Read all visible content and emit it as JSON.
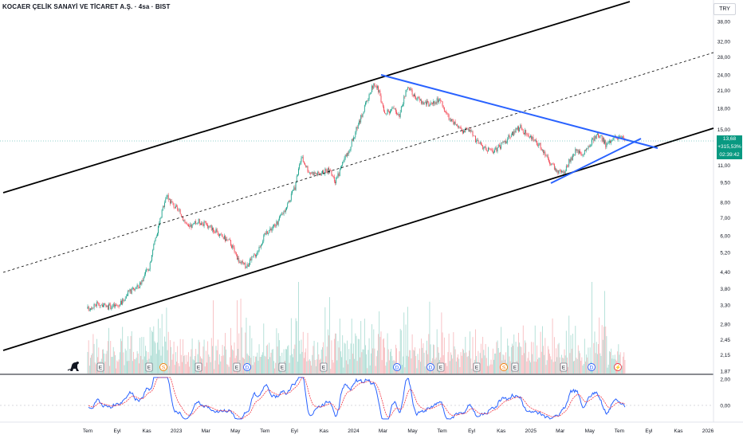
{
  "header": {
    "title": "KOCAER ÇELİK SANAYİ VE TİCARET A.Ş. · 4sa · BIST",
    "currency": "TRY"
  },
  "price_label": {
    "price": "13,68",
    "change": "+315,53%",
    "countdown": "02:39:42"
  },
  "colors": {
    "up": "#089981",
    "down": "#f23645",
    "trend_blue": "#2962ff",
    "channel": "#000000",
    "price_line": "#26a69a"
  },
  "chart_data": {
    "type": "candlestick",
    "title": "",
    "y_scale": "log",
    "y_ticks": [
      "38,00",
      "32,00",
      "28,00",
      "24,00",
      "21,00",
      "18,00",
      "15,00",
      "11,00",
      "9,50",
      "8,00",
      "7,00",
      "6,00",
      "5,20",
      "4,40",
      "3,80",
      "3,30",
      "2,80",
      "2,45",
      "2,15",
      "1,87"
    ],
    "x_ticks": [
      "Tem",
      "Eyl",
      "Kas",
      "2023",
      "Mar",
      "May",
      "Tem",
      "Eyl",
      "Kas",
      "2024",
      "Mar",
      "May",
      "Tem",
      "Eyl",
      "Kas",
      "2025",
      "Mar",
      "May",
      "Tem",
      "Eyl",
      "Kas",
      "2026"
    ],
    "price_path": [
      [
        "2022-07-01",
        3.2
      ],
      [
        "2022-07-20",
        3.35
      ],
      [
        "2022-08-10",
        3.25
      ],
      [
        "2022-09-05",
        3.3
      ],
      [
        "2022-09-25",
        3.7
      ],
      [
        "2022-10-15",
        3.9
      ],
      [
        "2022-11-05",
        4.6
      ],
      [
        "2022-11-25",
        6.6
      ],
      [
        "2022-12-10",
        8.5
      ],
      [
        "2022-12-25",
        7.8
      ],
      [
        "2023-01-10",
        7.2
      ],
      [
        "2023-01-25",
        6.4
      ],
      [
        "2023-02-15",
        6.8
      ],
      [
        "2023-03-10",
        6.5
      ],
      [
        "2023-04-01",
        6.0
      ],
      [
        "2023-04-20",
        5.7
      ],
      [
        "2023-05-10",
        4.8
      ],
      [
        "2023-05-25",
        4.6
      ],
      [
        "2023-06-15",
        5.2
      ],
      [
        "2023-07-05",
        6.2
      ],
      [
        "2023-07-25",
        6.6
      ],
      [
        "2023-08-15",
        7.7
      ],
      [
        "2023-09-01",
        9.0
      ],
      [
        "2023-09-15",
        11.8
      ],
      [
        "2023-10-01",
        10.4
      ],
      [
        "2023-10-20",
        10.2
      ],
      [
        "2023-11-10",
        10.6
      ],
      [
        "2023-11-25",
        9.6
      ],
      [
        "2023-12-10",
        11.2
      ],
      [
        "2023-12-25",
        13.0
      ],
      [
        "2024-01-10",
        15.5
      ],
      [
        "2024-01-25",
        18.5
      ],
      [
        "2024-02-10",
        22.0
      ],
      [
        "2024-02-20",
        21.3
      ],
      [
        "2024-03-05",
        17.0
      ],
      [
        "2024-03-20",
        18.0
      ],
      [
        "2024-04-05",
        17.0
      ],
      [
        "2024-04-20",
        21.5
      ],
      [
        "2024-05-05",
        20.0
      ],
      [
        "2024-05-20",
        19.0
      ],
      [
        "2024-06-10",
        18.5
      ],
      [
        "2024-06-25",
        19.5
      ],
      [
        "2024-07-10",
        17.2
      ],
      [
        "2024-07-25",
        15.8
      ],
      [
        "2024-08-10",
        14.8
      ],
      [
        "2024-08-25",
        15.1
      ],
      [
        "2024-09-10",
        13.5
      ],
      [
        "2024-09-25",
        12.9
      ],
      [
        "2024-10-10",
        12.4
      ],
      [
        "2024-10-25",
        12.8
      ],
      [
        "2024-11-10",
        13.6
      ],
      [
        "2024-11-25",
        14.6
      ],
      [
        "2024-12-10",
        15.3
      ],
      [
        "2024-12-25",
        14.2
      ],
      [
        "2025-01-10",
        13.6
      ],
      [
        "2025-01-25",
        12.6
      ],
      [
        "2025-02-10",
        11.3
      ],
      [
        "2025-02-25",
        10.4
      ],
      [
        "2025-03-10",
        10.2
      ],
      [
        "2025-03-20",
        11.3
      ],
      [
        "2025-04-05",
        12.6
      ],
      [
        "2025-04-20",
        12.2
      ],
      [
        "2025-05-05",
        13.5
      ],
      [
        "2025-05-20",
        14.4
      ],
      [
        "2025-06-05",
        13.1
      ],
      [
        "2025-06-20",
        13.8
      ],
      [
        "2025-07-05",
        14.0
      ],
      [
        "2025-07-15",
        13.68
      ]
    ],
    "indicator_ticks": [
      "2,00",
      "0,00"
    ],
    "event_markers": [
      "E",
      "E",
      "S",
      "E",
      "E",
      "D",
      "E",
      "E",
      "D",
      "D",
      "E",
      "E",
      "S",
      "E",
      "E",
      "D",
      "⚡"
    ]
  }
}
